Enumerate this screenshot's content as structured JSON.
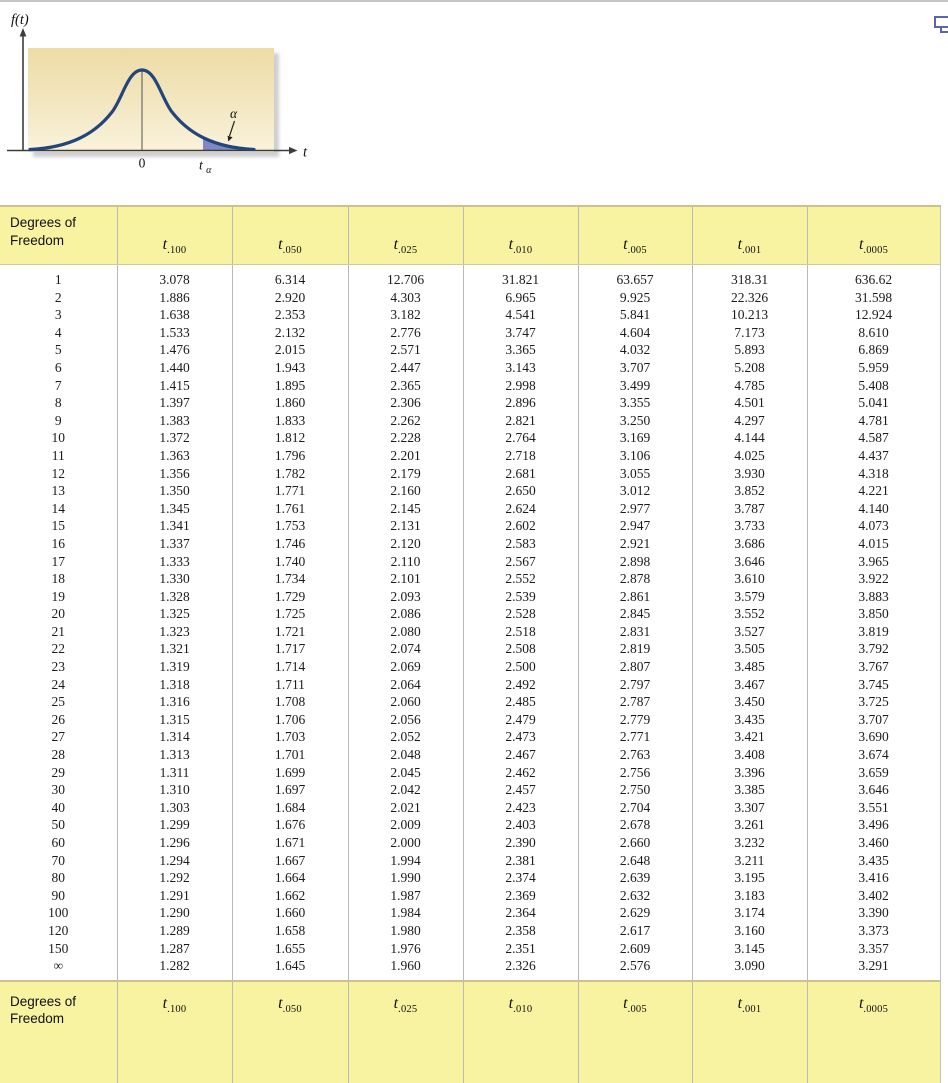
{
  "window": {
    "top_right_icon": "window-restore-icon"
  },
  "figure": {
    "y_axis_function_label": "f(t)",
    "x_axis_label": "t",
    "origin_label": "0",
    "critical_value_base": "t",
    "critical_value_subscript": "α",
    "tail_area_label": "α",
    "colors": {
      "curve": "#24457c",
      "tail_shade": "#7d88c4",
      "panel_top": "#eedca6",
      "panel_bottom": "#faf3dc"
    }
  },
  "table": {
    "row_header_label": "Degrees of Freedom",
    "t_symbol": "t",
    "column_subscripts": [
      ".100",
      ".050",
      ".025",
      ".010",
      ".005",
      ".001",
      ".0005"
    ],
    "colors": {
      "header_bg": "#f7f3a1",
      "rule_tan": "#cdc28e",
      "grid_gray": "#b9b9b9"
    },
    "rows": [
      {
        "df": "1",
        "values": [
          "3.078",
          "6.314",
          "12.706",
          "31.821",
          "63.657",
          "318.31",
          "636.62"
        ]
      },
      {
        "df": "2",
        "values": [
          "1.886",
          "2.920",
          "4.303",
          "6.965",
          "9.925",
          "22.326",
          "31.598"
        ]
      },
      {
        "df": "3",
        "values": [
          "1.638",
          "2.353",
          "3.182",
          "4.541",
          "5.841",
          "10.213",
          "12.924"
        ]
      },
      {
        "df": "4",
        "values": [
          "1.533",
          "2.132",
          "2.776",
          "3.747",
          "4.604",
          "7.173",
          "8.610"
        ]
      },
      {
        "df": "5",
        "values": [
          "1.476",
          "2.015",
          "2.571",
          "3.365",
          "4.032",
          "5.893",
          "6.869"
        ]
      },
      {
        "df": "6",
        "values": [
          "1.440",
          "1.943",
          "2.447",
          "3.143",
          "3.707",
          "5.208",
          "5.959"
        ]
      },
      {
        "df": "7",
        "values": [
          "1.415",
          "1.895",
          "2.365",
          "2.998",
          "3.499",
          "4.785",
          "5.408"
        ]
      },
      {
        "df": "8",
        "values": [
          "1.397",
          "1.860",
          "2.306",
          "2.896",
          "3.355",
          "4.501",
          "5.041"
        ]
      },
      {
        "df": "9",
        "values": [
          "1.383",
          "1.833",
          "2.262",
          "2.821",
          "3.250",
          "4.297",
          "4.781"
        ]
      },
      {
        "df": "10",
        "values": [
          "1.372",
          "1.812",
          "2.228",
          "2.764",
          "3.169",
          "4.144",
          "4.587"
        ]
      },
      {
        "df": "11",
        "values": [
          "1.363",
          "1.796",
          "2.201",
          "2.718",
          "3.106",
          "4.025",
          "4.437"
        ]
      },
      {
        "df": "12",
        "values": [
          "1.356",
          "1.782",
          "2.179",
          "2.681",
          "3.055",
          "3.930",
          "4.318"
        ]
      },
      {
        "df": "13",
        "values": [
          "1.350",
          "1.771",
          "2.160",
          "2.650",
          "3.012",
          "3.852",
          "4.221"
        ]
      },
      {
        "df": "14",
        "values": [
          "1.345",
          "1.761",
          "2.145",
          "2.624",
          "2.977",
          "3.787",
          "4.140"
        ]
      },
      {
        "df": "15",
        "values": [
          "1.341",
          "1.753",
          "2.131",
          "2.602",
          "2.947",
          "3.733",
          "4.073"
        ]
      },
      {
        "df": "16",
        "values": [
          "1.337",
          "1.746",
          "2.120",
          "2.583",
          "2.921",
          "3.686",
          "4.015"
        ]
      },
      {
        "df": "17",
        "values": [
          "1.333",
          "1.740",
          "2.110",
          "2.567",
          "2.898",
          "3.646",
          "3.965"
        ]
      },
      {
        "df": "18",
        "values": [
          "1.330",
          "1.734",
          "2.101",
          "2.552",
          "2.878",
          "3.610",
          "3.922"
        ]
      },
      {
        "df": "19",
        "values": [
          "1.328",
          "1.729",
          "2.093",
          "2.539",
          "2.861",
          "3.579",
          "3.883"
        ]
      },
      {
        "df": "20",
        "values": [
          "1.325",
          "1.725",
          "2.086",
          "2.528",
          "2.845",
          "3.552",
          "3.850"
        ]
      },
      {
        "df": "21",
        "values": [
          "1.323",
          "1.721",
          "2.080",
          "2.518",
          "2.831",
          "3.527",
          "3.819"
        ]
      },
      {
        "df": "22",
        "values": [
          "1.321",
          "1.717",
          "2.074",
          "2.508",
          "2.819",
          "3.505",
          "3.792"
        ]
      },
      {
        "df": "23",
        "values": [
          "1.319",
          "1.714",
          "2.069",
          "2.500",
          "2.807",
          "3.485",
          "3.767"
        ]
      },
      {
        "df": "24",
        "values": [
          "1.318",
          "1.711",
          "2.064",
          "2.492",
          "2.797",
          "3.467",
          "3.745"
        ]
      },
      {
        "df": "25",
        "values": [
          "1.316",
          "1.708",
          "2.060",
          "2.485",
          "2.787",
          "3.450",
          "3.725"
        ]
      },
      {
        "df": "26",
        "values": [
          "1.315",
          "1.706",
          "2.056",
          "2.479",
          "2.779",
          "3.435",
          "3.707"
        ]
      },
      {
        "df": "27",
        "values": [
          "1.314",
          "1.703",
          "2.052",
          "2.473",
          "2.771",
          "3.421",
          "3.690"
        ]
      },
      {
        "df": "28",
        "values": [
          "1.313",
          "1.701",
          "2.048",
          "2.467",
          "2.763",
          "3.408",
          "3.674"
        ]
      },
      {
        "df": "29",
        "values": [
          "1.311",
          "1.699",
          "2.045",
          "2.462",
          "2.756",
          "3.396",
          "3.659"
        ]
      },
      {
        "df": "30",
        "values": [
          "1.310",
          "1.697",
          "2.042",
          "2.457",
          "2.750",
          "3.385",
          "3.646"
        ]
      },
      {
        "df": "40",
        "values": [
          "1.303",
          "1.684",
          "2.021",
          "2.423",
          "2.704",
          "3.307",
          "3.551"
        ]
      },
      {
        "df": "50",
        "values": [
          "1.299",
          "1.676",
          "2.009",
          "2.403",
          "2.678",
          "3.261",
          "3.496"
        ]
      },
      {
        "df": "60",
        "values": [
          "1.296",
          "1.671",
          "2.000",
          "2.390",
          "2.660",
          "3.232",
          "3.460"
        ]
      },
      {
        "df": "70",
        "values": [
          "1.294",
          "1.667",
          "1.994",
          "2.381",
          "2.648",
          "3.211",
          "3.435"
        ]
      },
      {
        "df": "80",
        "values": [
          "1.292",
          "1.664",
          "1.990",
          "2.374",
          "2.639",
          "3.195",
          "3.416"
        ]
      },
      {
        "df": "90",
        "values": [
          "1.291",
          "1.662",
          "1.987",
          "2.369",
          "2.632",
          "3.183",
          "3.402"
        ]
      },
      {
        "df": "100",
        "values": [
          "1.290",
          "1.660",
          "1.984",
          "2.364",
          "2.629",
          "3.174",
          "3.390"
        ]
      },
      {
        "df": "120",
        "values": [
          "1.289",
          "1.658",
          "1.980",
          "2.358",
          "2.617",
          "3.160",
          "3.373"
        ]
      },
      {
        "df": "150",
        "values": [
          "1.287",
          "1.655",
          "1.976",
          "2.351",
          "2.609",
          "3.145",
          "3.357"
        ]
      },
      {
        "df": "∞",
        "values": [
          "1.282",
          "1.645",
          "1.960",
          "2.326",
          "2.576",
          "3.090",
          "3.291"
        ]
      }
    ]
  }
}
